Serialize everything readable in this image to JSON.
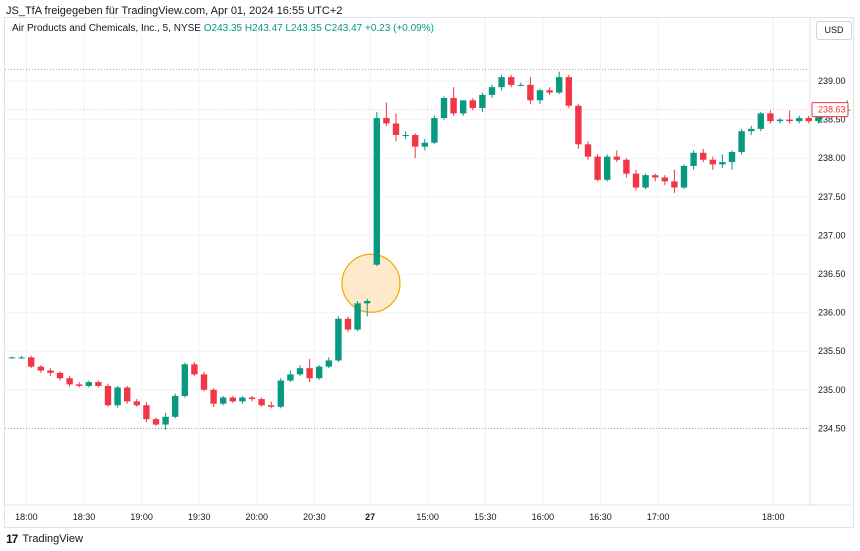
{
  "header": {
    "published": "JS_TfA freigegeben für TradingView.com, Apr 01, 2024 16:55 UTC+2",
    "symbol": "Air Products and Chemicals, Inc., 5, NYSE",
    "ohlc": "O243.35 H243.47 L243.35 C243.47 +0.23 (+0.09%)"
  },
  "currency_button": "USD",
  "footer": {
    "logo_mark": "17",
    "brand": "TradingView"
  },
  "colors": {
    "up": "#089981",
    "down": "#f23645",
    "grid": "#f0f3fa",
    "highlight": "#f7a600",
    "highlight_fill": "#fde3b8"
  },
  "chart_data": {
    "type": "candlestick",
    "ylim": [
      234.3,
      239.3
    ],
    "y_ticks": [
      "234.50",
      "235.00",
      "235.50",
      "236.00",
      "236.50",
      "237.00",
      "237.50",
      "238.00",
      "238.50",
      "239.00"
    ],
    "x_ticks": [
      {
        "label": "18:00",
        "bar": 1.5
      },
      {
        "label": "18:30",
        "bar": 7.5
      },
      {
        "label": "19:00",
        "bar": 13.5
      },
      {
        "label": "19:30",
        "bar": 19.5
      },
      {
        "label": "20:00",
        "bar": 25.5
      },
      {
        "label": "20:30",
        "bar": 31.5
      },
      {
        "label": "27",
        "bar": 37.3,
        "bold": true
      },
      {
        "label": "15:00",
        "bar": 43.3
      },
      {
        "label": "15:30",
        "bar": 49.3
      },
      {
        "label": "16:00",
        "bar": 55.3
      },
      {
        "label": "16:30",
        "bar": 61.3
      },
      {
        "label": "17:00",
        "bar": 67.3
      },
      {
        "label": "18:00",
        "bar": 79.3
      }
    ],
    "last_price": "238.63",
    "dotted_levels": [
      239.15,
      234.5
    ],
    "candles": [
      [
        235.42,
        235.43,
        235.4,
        235.42
      ],
      [
        235.42,
        235.44,
        235.4,
        235.42
      ],
      [
        235.42,
        235.44,
        235.28,
        235.3
      ],
      [
        235.3,
        235.32,
        235.22,
        235.25
      ],
      [
        235.25,
        235.28,
        235.18,
        235.22
      ],
      [
        235.22,
        235.24,
        235.12,
        235.15
      ],
      [
        235.15,
        235.18,
        235.04,
        235.07
      ],
      [
        235.07,
        235.1,
        235.03,
        235.05
      ],
      [
        235.05,
        235.12,
        235.03,
        235.1
      ],
      [
        235.1,
        235.12,
        235.03,
        235.05
      ],
      [
        235.05,
        235.08,
        234.78,
        234.8
      ],
      [
        234.8,
        235.05,
        234.77,
        235.03
      ],
      [
        235.03,
        235.05,
        234.82,
        234.85
      ],
      [
        234.85,
        234.88,
        234.78,
        234.8
      ],
      [
        234.8,
        234.84,
        234.58,
        234.62
      ],
      [
        234.62,
        234.64,
        234.53,
        234.55
      ],
      [
        234.55,
        234.7,
        234.48,
        234.65
      ],
      [
        234.65,
        234.95,
        234.63,
        234.92
      ],
      [
        234.92,
        235.35,
        234.9,
        235.33
      ],
      [
        235.33,
        235.36,
        235.18,
        235.2
      ],
      [
        235.2,
        235.23,
        234.98,
        235.0
      ],
      [
        235.0,
        235.02,
        234.78,
        234.82
      ],
      [
        234.82,
        234.92,
        234.8,
        234.9
      ],
      [
        234.9,
        234.92,
        234.83,
        234.85
      ],
      [
        234.85,
        234.92,
        234.82,
        234.9
      ],
      [
        234.9,
        234.92,
        234.85,
        234.88
      ],
      [
        234.88,
        234.9,
        234.78,
        234.8
      ],
      [
        234.8,
        234.85,
        234.76,
        234.78
      ],
      [
        234.78,
        235.15,
        234.76,
        235.12
      ],
      [
        235.12,
        235.25,
        235.1,
        235.2
      ],
      [
        235.2,
        235.32,
        235.18,
        235.28
      ],
      [
        235.28,
        235.4,
        235.1,
        235.15
      ],
      [
        235.15,
        235.32,
        235.13,
        235.3
      ],
      [
        235.3,
        235.42,
        235.28,
        235.38
      ],
      [
        235.38,
        235.95,
        235.36,
        235.92
      ],
      [
        235.92,
        235.95,
        235.75,
        235.78
      ],
      [
        235.78,
        236.15,
        235.76,
        236.12
      ],
      [
        236.12,
        236.18,
        235.95,
        236.15
      ],
      [
        236.62,
        238.6,
        236.6,
        238.52
      ],
      [
        238.52,
        238.72,
        238.42,
        238.45
      ],
      [
        238.45,
        238.58,
        238.22,
        238.3
      ],
      [
        238.3,
        238.35,
        238.25,
        238.3
      ],
      [
        238.3,
        238.32,
        238.0,
        238.15
      ],
      [
        238.15,
        238.25,
        238.1,
        238.2
      ],
      [
        238.2,
        238.55,
        238.18,
        238.52
      ],
      [
        238.52,
        238.8,
        238.5,
        238.78
      ],
      [
        238.78,
        238.92,
        238.55,
        238.58
      ],
      [
        238.58,
        238.72,
        238.55,
        238.75
      ],
      [
        238.75,
        238.78,
        238.62,
        238.65
      ],
      [
        238.65,
        238.85,
        238.6,
        238.82
      ],
      [
        238.82,
        238.95,
        238.78,
        238.92
      ],
      [
        238.92,
        239.08,
        238.88,
        239.05
      ],
      [
        239.05,
        239.08,
        238.92,
        238.95
      ],
      [
        238.95,
        238.98,
        238.93,
        238.95
      ],
      [
        238.95,
        239.05,
        238.7,
        238.75
      ],
      [
        238.75,
        238.9,
        238.7,
        238.88
      ],
      [
        238.88,
        238.92,
        238.82,
        238.85
      ],
      [
        238.85,
        239.12,
        238.83,
        239.05
      ],
      [
        239.05,
        239.08,
        238.65,
        238.68
      ],
      [
        238.68,
        238.7,
        238.12,
        238.18
      ],
      [
        238.18,
        238.22,
        237.98,
        238.02
      ],
      [
        238.02,
        238.05,
        237.7,
        237.72
      ],
      [
        237.72,
        238.05,
        237.7,
        238.02
      ],
      [
        238.02,
        238.1,
        237.95,
        237.98
      ],
      [
        237.98,
        238.0,
        237.75,
        237.8
      ],
      [
        237.8,
        237.85,
        237.58,
        237.62
      ],
      [
        237.62,
        237.8,
        237.6,
        237.78
      ],
      [
        237.78,
        237.8,
        237.7,
        237.75
      ],
      [
        237.75,
        237.78,
        237.65,
        237.7
      ],
      [
        237.7,
        237.85,
        237.55,
        237.62
      ],
      [
        237.62,
        237.92,
        237.6,
        237.9
      ],
      [
        237.9,
        238.1,
        237.85,
        238.07
      ],
      [
        238.07,
        238.12,
        237.95,
        237.98
      ],
      [
        237.98,
        238.02,
        237.85,
        237.92
      ],
      [
        237.92,
        238.05,
        237.87,
        237.95
      ],
      [
        237.95,
        238.1,
        237.85,
        238.08
      ],
      [
        238.08,
        238.38,
        238.05,
        238.35
      ],
      [
        238.35,
        238.42,
        238.3,
        238.38
      ],
      [
        238.38,
        238.6,
        238.35,
        238.58
      ],
      [
        238.58,
        238.62,
        238.45,
        238.48
      ],
      [
        238.48,
        238.52,
        238.45,
        238.5
      ],
      [
        238.5,
        238.62,
        238.45,
        238.48
      ],
      [
        238.48,
        238.55,
        238.45,
        238.52
      ],
      [
        238.52,
        238.55,
        238.45,
        238.48
      ],
      [
        238.48,
        238.58,
        238.45,
        238.55
      ],
      [
        238.55,
        238.72,
        238.53,
        238.7
      ],
      [
        238.7,
        238.72,
        238.67,
        238.7
      ],
      [
        238.63,
        238.75,
        238.6,
        238.63
      ]
    ]
  }
}
